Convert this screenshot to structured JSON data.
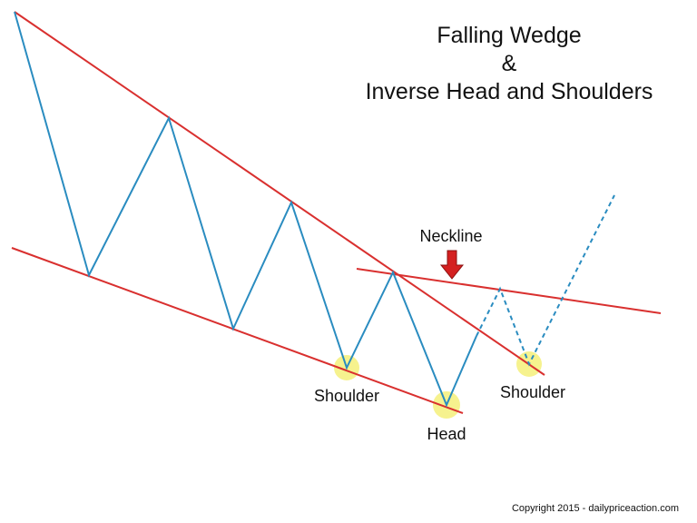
{
  "title": {
    "line1": "Falling Wedge",
    "line2": "&",
    "line3": "Inverse Head and Shoulders"
  },
  "labels": {
    "neckline": "Neckline",
    "left_shoulder": "Shoulder",
    "head": "Head",
    "right_shoulder": "Shoulder"
  },
  "copyright": "Copyright 2015 - dailypriceaction.com",
  "colors": {
    "trendline": "#d9302f",
    "price": "#2a8cc0",
    "arrow": "#d42020",
    "highlight": "#f5f07a"
  }
}
